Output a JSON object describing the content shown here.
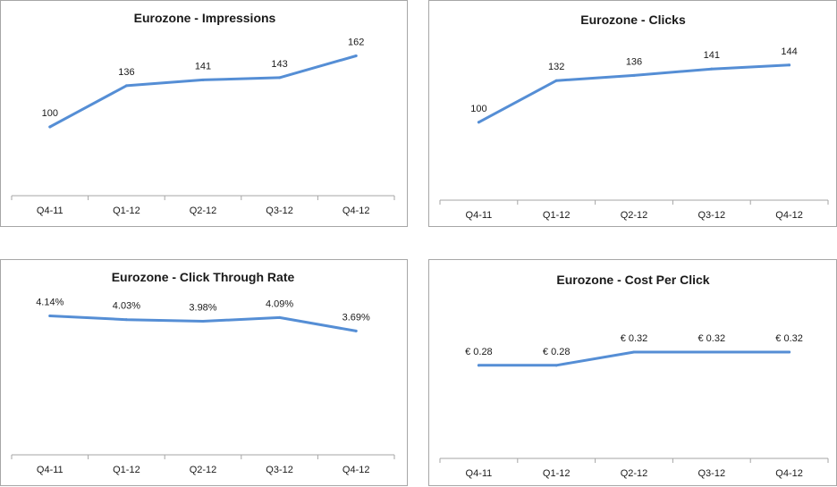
{
  "chart_data": [
    {
      "type": "line",
      "title": "Eurozone - Impressions",
      "categories": [
        "Q4-11",
        "Q1-12",
        "Q2-12",
        "Q3-12",
        "Q4-12"
      ],
      "series": [
        {
          "values": [
            100,
            136,
            141,
            143,
            162
          ],
          "labels": [
            "100",
            "136",
            "141",
            "143",
            "162"
          ]
        }
      ],
      "ylim": [
        40,
        185
      ],
      "color": "#558ed5",
      "grid": false
    },
    {
      "type": "line",
      "title": "Eurozone - Clicks",
      "categories": [
        "Q4-11",
        "Q1-12",
        "Q2-12",
        "Q3-12",
        "Q4-12"
      ],
      "series": [
        {
          "values": [
            100,
            132,
            136,
            141,
            144
          ],
          "labels": [
            "100",
            "132",
            "136",
            "141",
            "144"
          ]
        }
      ],
      "ylim": [
        40,
        170
      ],
      "color": "#558ed5",
      "grid": false
    },
    {
      "type": "line",
      "title": "Eurozone - Click Through Rate",
      "categories": [
        "Q4-11",
        "Q1-12",
        "Q2-12",
        "Q3-12",
        "Q4-12"
      ],
      "series": [
        {
          "values": [
            4.14,
            4.03,
            3.98,
            4.09,
            3.69
          ],
          "labels": [
            "4.14%",
            "4.03%",
            "3.98%",
            "4.09%",
            "3.69%"
          ]
        }
      ],
      "ylim": [
        0,
        4.9
      ],
      "color": "#558ed5",
      "grid": false
    },
    {
      "type": "line",
      "title": "Eurozone - Cost Per Click",
      "categories": [
        "Q4-11",
        "Q1-12",
        "Q2-12",
        "Q3-12",
        "Q4-12"
      ],
      "series": [
        {
          "values": [
            0.28,
            0.28,
            0.32,
            0.32,
            0.32
          ],
          "labels": [
            "€ 0.28",
            "€ 0.28",
            "€ 0.32",
            "€ 0.32",
            "€ 0.32"
          ]
        }
      ],
      "ylim": [
        0,
        0.5
      ],
      "color": "#558ed5",
      "grid": false
    }
  ]
}
